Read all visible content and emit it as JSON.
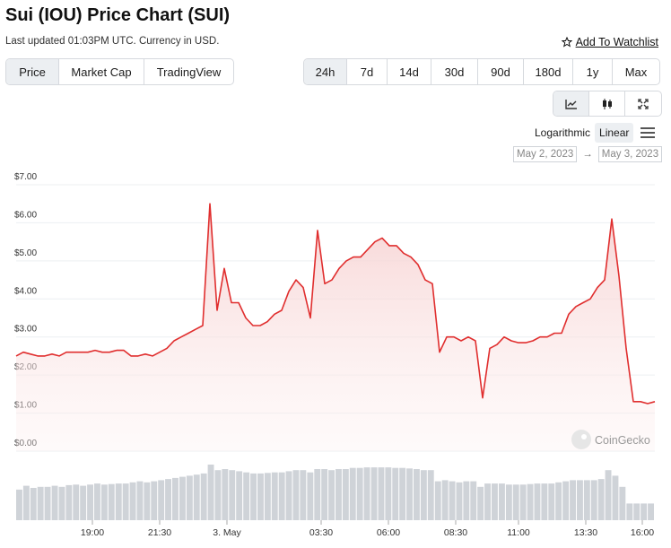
{
  "header": {
    "title": "Sui (IOU) Price Chart (SUI)",
    "subtitle": "Last updated 01:03PM UTC. Currency in USD.",
    "watchlist_label": "Add To Watchlist"
  },
  "view_tabs": [
    "Price",
    "Market Cap",
    "TradingView"
  ],
  "range_tabs": [
    "24h",
    "7d",
    "14d",
    "30d",
    "90d",
    "180d",
    "1y",
    "Max"
  ],
  "selected_view": "Price",
  "selected_range": "24h",
  "chart_type_icons": [
    "line-chart-icon",
    "candlestick-icon",
    "expand-icon"
  ],
  "scale": {
    "options": [
      "Logarithmic",
      "Linear"
    ],
    "selected": "Linear"
  },
  "date_range": {
    "from": "May 2, 2023",
    "arrow": "→",
    "to": "May 3, 2023"
  },
  "watermark": "CoinGecko",
  "colors": {
    "line": "#e02e2e",
    "fill_top": "#f8d8d8",
    "volume": "#cfd3d8",
    "grid": "#eceff2"
  },
  "chart_data": {
    "type": "area",
    "y_ticks": [
      "$7.00",
      "$6.00",
      "$5.00",
      "$4.00",
      "$3.00",
      "$2.00",
      "$1.00",
      "$0.00"
    ],
    "ylim": [
      0,
      7
    ],
    "x_ticks": [
      "19:00",
      "21:30",
      "3. May",
      "03:30",
      "06:00",
      "08:30",
      "11:00",
      "13:30",
      "16:00"
    ],
    "series": [
      {
        "values": [
          2.5,
          2.6,
          2.55,
          2.5,
          2.5,
          2.55,
          2.5,
          2.6,
          2.6,
          2.6,
          2.6,
          2.65,
          2.6,
          2.6,
          2.65,
          2.65,
          2.5,
          2.5,
          2.55,
          2.5,
          2.6,
          2.7,
          2.9,
          3.0,
          3.1,
          3.2,
          3.3,
          6.5,
          3.7,
          4.8,
          3.9,
          3.9,
          3.5,
          3.3,
          3.3,
          3.4,
          3.6,
          3.7,
          4.2,
          4.5,
          4.3,
          3.5,
          5.8,
          4.4,
          4.5,
          4.8,
          5.0,
          5.1,
          5.1,
          5.3,
          5.5,
          5.6,
          5.4,
          5.4,
          5.2,
          5.1,
          4.9,
          4.5,
          4.4,
          2.6,
          3.0,
          3.0,
          2.9,
          3.0,
          2.9,
          1.4,
          2.7,
          2.8,
          3.0,
          2.9,
          2.85,
          2.85,
          2.9,
          3.0,
          3.0,
          3.1,
          3.1,
          3.6,
          3.8,
          3.9,
          4.0,
          4.3,
          4.5,
          6.1,
          4.6,
          2.7,
          1.3,
          1.3,
          1.25,
          1.3
        ]
      }
    ],
    "volume": [
      0.55,
      0.62,
      0.58,
      0.6,
      0.6,
      0.62,
      0.6,
      0.63,
      0.64,
      0.62,
      0.64,
      0.66,
      0.64,
      0.65,
      0.66,
      0.66,
      0.68,
      0.7,
      0.68,
      0.7,
      0.72,
      0.74,
      0.76,
      0.78,
      0.8,
      0.82,
      0.84,
      1.0,
      0.9,
      0.92,
      0.9,
      0.88,
      0.86,
      0.84,
      0.84,
      0.85,
      0.86,
      0.86,
      0.88,
      0.9,
      0.9,
      0.86,
      0.92,
      0.92,
      0.9,
      0.92,
      0.92,
      0.94,
      0.94,
      0.95,
      0.95,
      0.95,
      0.95,
      0.94,
      0.94,
      0.93,
      0.92,
      0.9,
      0.9,
      0.7,
      0.72,
      0.7,
      0.68,
      0.7,
      0.7,
      0.6,
      0.66,
      0.66,
      0.66,
      0.64,
      0.64,
      0.64,
      0.65,
      0.66,
      0.66,
      0.66,
      0.68,
      0.7,
      0.72,
      0.72,
      0.72,
      0.72,
      0.74,
      0.9,
      0.8,
      0.6,
      0.3,
      0.3,
      0.3,
      0.3
    ]
  }
}
